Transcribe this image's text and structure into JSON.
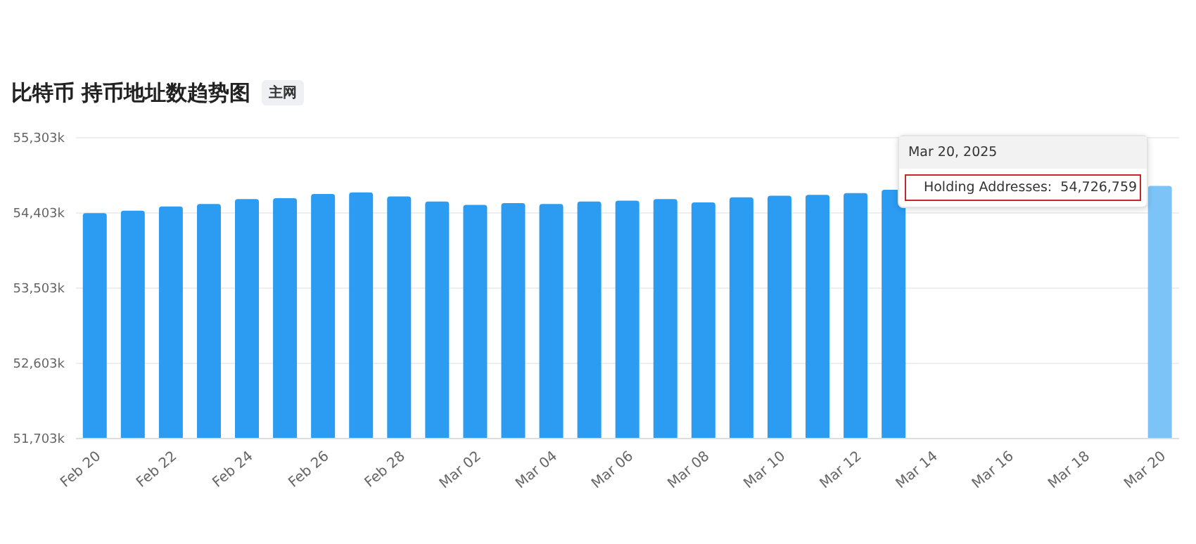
{
  "chart_data": {
    "type": "bar",
    "title": "比特币 持币地址数趋势图",
    "subtitle": "主网",
    "categories": [
      "Feb 20",
      null,
      "Feb 22",
      null,
      "Feb 24",
      null,
      "Feb 26",
      null,
      "Feb 28",
      null,
      "Mar 02",
      null,
      "Mar 04",
      null,
      "Mar 06",
      null,
      "Mar 08",
      null,
      "Mar 10",
      null,
      "Mar 12",
      null,
      "Mar 14",
      null,
      "Mar 16",
      null,
      "Mar 18",
      null,
      "Mar 20"
    ],
    "series": [
      {
        "colors": [
          "#2b9cf2",
          "#2b9cf2",
          "#2b9cf2",
          "#2b9cf2",
          "#2b9cf2",
          "#2b9cf2",
          "#2b9cf2",
          "#2b9cf2",
          "#2b9cf2",
          "#2b9cf2",
          "#2b9cf2",
          "#2b9cf2",
          "#2b9cf2",
          "#2b9cf2",
          "#2b9cf2",
          "#2b9cf2",
          "#2b9cf2",
          "#2b9cf2",
          "#2b9cf2",
          "#2b9cf2",
          "#2b9cf2",
          "#2b9cf2",
          "#2b9cf2",
          "#2b9cf2",
          "#2b9cf2",
          "#2b9cf2",
          "#2b9cf2",
          "#2b9cf2",
          "#7cc4f7"
        ],
        "values": [
          54400,
          54430,
          54480,
          54510,
          54570,
          54580,
          54630,
          54650,
          54600,
          54540,
          54500,
          54520,
          54510,
          54540,
          54550,
          54570,
          54530,
          54590,
          54610,
          54620,
          54640,
          54680,
          null,
          null,
          null,
          null,
          null,
          null,
          54726.759
        ]
      }
    ],
    "annotations": [
      "Mar 20, 2025",
      {
        "text": "Holding Addresses:  54,726,759",
        "x": "Mar 20",
        "y": 54726.759
      }
    ],
    "ylim": [
      51703,
      55303
    ],
    "yticks": [
      {
        "value": 51703,
        "label": "51,703k"
      },
      {
        "value": 52603,
        "label": "52,603k"
      },
      {
        "value": 53503,
        "label": "53,503k"
      },
      {
        "value": 54403,
        "label": "54,403k"
      },
      {
        "value": 55303,
        "label": "55,303k"
      }
    ],
    "grid": "y"
  }
}
